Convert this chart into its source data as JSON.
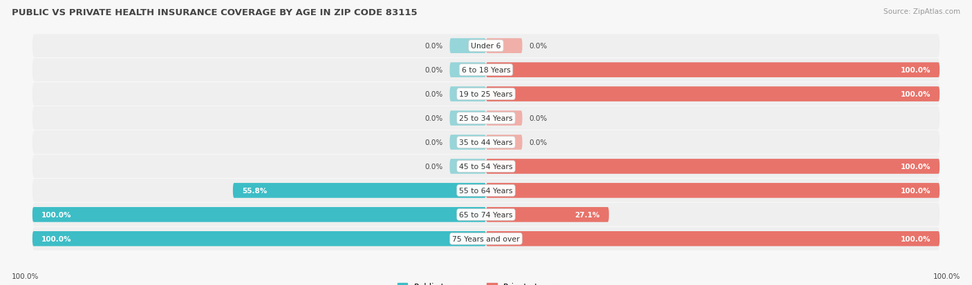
{
  "title": "PUBLIC VS PRIVATE HEALTH INSURANCE COVERAGE BY AGE IN ZIP CODE 83115",
  "source": "Source: ZipAtlas.com",
  "categories": [
    "Under 6",
    "6 to 18 Years",
    "19 to 25 Years",
    "25 to 34 Years",
    "35 to 44 Years",
    "45 to 54 Years",
    "55 to 64 Years",
    "65 to 74 Years",
    "75 Years and over"
  ],
  "public_values": [
    0.0,
    0.0,
    0.0,
    0.0,
    0.0,
    0.0,
    55.8,
    100.0,
    100.0
  ],
  "private_values": [
    0.0,
    100.0,
    100.0,
    0.0,
    0.0,
    100.0,
    100.0,
    27.1,
    100.0
  ],
  "public_color": "#3DBDC6",
  "private_color": "#E8736A",
  "public_color_light": "#96D5D9",
  "private_color_light": "#F0AFA9",
  "row_bg_color": "#EFEFEF",
  "bg_color": "#F7F7F7",
  "title_color": "#444444",
  "label_dark": "#444444",
  "label_white": "#FFFFFF",
  "max_value": 100.0,
  "stub_size": 8.0,
  "bar_height": 0.62,
  "figsize": [
    14.06,
    4.14
  ],
  "dpi": 100
}
